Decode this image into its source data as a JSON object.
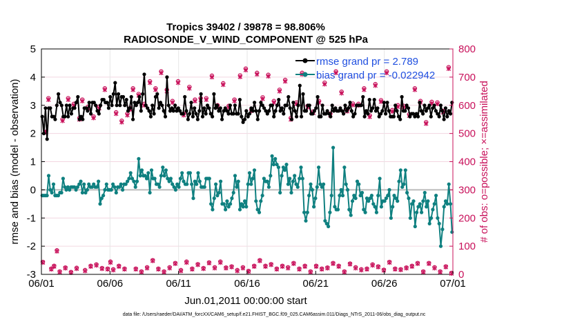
{
  "chart_data": {
    "type": "line",
    "title_line1": "Tropics 39402 / 39878 = 98.806%",
    "title_line2": "RADIOSONDE_V_WIND_COMPONENT @ 525 hPa",
    "xlabel": "Jun.01,2011 00:00:00 start",
    "ylabel": "rmse and bias (model - observation)",
    "ylabel_right": "# of obs: o=possible; ×=assimilated",
    "ylim": [
      -3,
      5
    ],
    "ylim_right": [
      0,
      800
    ],
    "xlim": [
      0,
      30
    ],
    "x_ticks": [
      0,
      5,
      10,
      15,
      20,
      25,
      30
    ],
    "x_tick_labels": [
      "06/01",
      "06/06",
      "06/11",
      "06/16",
      "06/21",
      "06/26",
      "07/01"
    ],
    "y_tick_labels": [
      "-3",
      "-2",
      "-1",
      "0",
      "1",
      "2",
      "3",
      "4",
      "5"
    ],
    "y_tick_labels_right": [
      "0",
      "100",
      "200",
      "300",
      "400",
      "500",
      "600",
      "700",
      "800"
    ],
    "footer": "data file: /Users/raeder/DAI/ATM_forcXX/CAM6_setup/f.e21.FHIST_BGC.f09_025.CAM6assim.011/Diags_NTrS_2011-06/obs_diag_output.nc",
    "colors": {
      "rmse": "#000000",
      "bias": "#0f8080",
      "obs": "#c8105a",
      "legend_text": "#1f4fe0",
      "zero": "#bbbbbb"
    },
    "series": [
      {
        "name": "rmse grand pr = 2.789",
        "axis": "left",
        "values": [
          2.6,
          2.0,
          2.9,
          1.8,
          2.9,
          2.9,
          2.6,
          2.6,
          2.5,
          3.0,
          3.4,
          3.1,
          3.0,
          2.6,
          2.6,
          3.0,
          2.6,
          3.0,
          2.7,
          2.9,
          2.9,
          3.1,
          3.3,
          2.5,
          2.6,
          2.5,
          2.9,
          2.9,
          2.8,
          3.1,
          2.7,
          3.1,
          3.1,
          3.0,
          2.8,
          2.7,
          3.0,
          3.2,
          3.2,
          3.1,
          3.1,
          2.9,
          3.3,
          3.0,
          3.4,
          3.8,
          3.0,
          3.4,
          3.0,
          3.3,
          3.3,
          3.0,
          3.2,
          2.8,
          2.9,
          3.3,
          2.5,
          3.1,
          3.0,
          3.1,
          3.3,
          2.8,
          3.4,
          4.1,
          3.0,
          2.9,
          2.8,
          2.6,
          3.0,
          2.7,
          3.3,
          3.4,
          2.9,
          3.1,
          3.0,
          2.8,
          2.6,
          4.0,
          3.0,
          2.8,
          2.9,
          2.8,
          3.0,
          2.8,
          2.9,
          2.8,
          2.7,
          2.7,
          3.3,
          2.8,
          2.5,
          2.7,
          3.1,
          2.6,
          2.9,
          2.7,
          2.5,
          2.8,
          3.4,
          2.6,
          2.9,
          2.7,
          3.0,
          2.9,
          2.7,
          2.6,
          3.4,
          2.9,
          3.0,
          2.8,
          2.9,
          2.5,
          2.8,
          2.9,
          2.8,
          2.7,
          3.0,
          2.7,
          2.7,
          3.0,
          2.7,
          2.7,
          3.2,
          2.6,
          2.4,
          2.5,
          2.8,
          2.6,
          2.7,
          2.9,
          2.8,
          3.1,
          2.8,
          2.5,
          2.8,
          3.1,
          3.0,
          2.9,
          2.8,
          2.7,
          2.8,
          3.0,
          3.0,
          2.6,
          2.8,
          3.0,
          3.2,
          2.8,
          2.9,
          2.7,
          3.0,
          3.0,
          3.3,
          2.9,
          2.5,
          3.1,
          2.8,
          2.6,
          3.0,
          3.7,
          2.6,
          3.4,
          2.8,
          2.8,
          3.0,
          3.0,
          2.7,
          2.7,
          2.8,
          2.9,
          3.3,
          2.6,
          2.6,
          3.0,
          2.7,
          2.7,
          2.8,
          2.7,
          2.6,
          3.0,
          2.8,
          2.9,
          2.8,
          2.8,
          2.9,
          2.8,
          2.7,
          3.0,
          2.8,
          2.9,
          3.1,
          2.8,
          2.6,
          2.7,
          3.0,
          3.0,
          3.0,
          3.0,
          3.3,
          2.6,
          2.8,
          2.7,
          3.2,
          2.8,
          2.9,
          3.2,
          2.8,
          2.9,
          2.6,
          2.7,
          2.8,
          3.1,
          2.7,
          3.1,
          2.8,
          2.6,
          2.6,
          2.6,
          3.0,
          2.8,
          2.6,
          2.5,
          3.3,
          2.8,
          2.8,
          3.0,
          2.9,
          2.6,
          2.7,
          2.7,
          2.6,
          2.7,
          2.6,
          3.1,
          2.8,
          2.7,
          3.0,
          2.8,
          2.9,
          3.0,
          2.6,
          2.9,
          3.0,
          2.8,
          2.7,
          2.6,
          3.0,
          2.8,
          2.5,
          2.9,
          2.6,
          2.8,
          2.7,
          3.1
        ]
      },
      {
        "name": "bias grand pr = -0.022942",
        "axis": "left",
        "values": [
          -0.2,
          -0.2,
          -0.2,
          -0.2,
          0.5,
          0.0,
          -0.1,
          0.2,
          -0.2,
          -0.2,
          -0.2,
          -0.1,
          -0.1,
          0.4,
          0.1,
          0.0,
          0.1,
          0.0,
          0.1,
          0.1,
          0.1,
          0.0,
          0.1,
          0.2,
          0.3,
          -0.1,
          0.2,
          -0.1,
          0.0,
          0.2,
          0.1,
          0.1,
          0.2,
          0.1,
          0.1,
          0.3,
          -0.5,
          -0.3,
          -0.2,
          0.0,
          0.2,
          0.0,
          0.0,
          0.0,
          0.2,
          0.1,
          -0.1,
          0.1,
          0.1,
          0.2,
          0.0,
          0.2,
          0.2,
          0.3,
          0.4,
          0.6,
          0.4,
          0.3,
          0.1,
          0.3,
          1.1,
          0.5,
          0.7,
          0.5,
          0.5,
          0.4,
          0.6,
          -0.1,
          0.7,
          0.4,
          0.4,
          0.2,
          0.2,
          0.1,
          0.5,
          0.8,
          0.5,
          0.7,
          0.4,
          0.3,
          0.4,
          0.2,
          0.1,
          0.0,
          0.2,
          0.1,
          0.4,
          0.6,
          0.3,
          0.2,
          0.2,
          0.6,
          0.6,
          0.2,
          -0.3,
          0.3,
          0.2,
          0.6,
          0.3,
          0.1,
          0.1,
          0.1,
          0.4,
          0.4,
          0.4,
          -0.5,
          -0.7,
          -0.3,
          0.2,
          -0.2,
          -0.1,
          0.3,
          -0.5,
          -0.5,
          -0.7,
          -0.4,
          -0.6,
          -0.5,
          -0.3,
          -0.1,
          0.5,
          0.1,
          0.3,
          -0.7,
          -0.5,
          -0.6,
          -0.4,
          -0.6,
          0.2,
          0.6,
          0.2,
          0.4,
          0.7,
          -0.4,
          -0.7,
          -0.8,
          -0.4,
          -0.2,
          0.4,
          0.3,
          0.3,
          0.1,
          0.5,
          1.2,
          0.9,
          1.1,
          0.9,
          0.8,
          -0.1,
          0.5,
          0.8,
          0.7,
          0.9,
          0.2,
          0.4,
          -0.1,
          0.3,
          0.5,
          0.2,
          0.1,
          0.4,
          0.8,
          0.4,
          -0.8,
          -1.1,
          -0.8,
          -0.2,
          0.2,
          0.0,
          -0.6,
          -0.3,
          0.1,
          0.8,
          0.2,
          0.1,
          0.2,
          -1.1,
          -1.2,
          -1.3,
          -0.8,
          -0.2,
          1.5,
          -0.6,
          -0.7,
          -0.7,
          -0.2,
          0.0,
          -0.2,
          0.8,
          0.2,
          0.0,
          -0.7,
          -0.9,
          -0.4,
          -0.2,
          -0.3,
          0.3,
          0.2,
          -0.2,
          -0.1,
          -0.7,
          -0.8,
          -0.3,
          -0.4,
          -0.3,
          -0.2,
          -0.5,
          -0.6,
          -0.8,
          -0.2,
          0.4,
          -0.6,
          -0.4,
          -0.4,
          -0.3,
          -0.2,
          0.0,
          -1.0,
          -0.6,
          -0.2,
          -0.3,
          -0.4,
          0.3,
          0.7,
          0.1,
          0.2,
          0.7,
          -0.1,
          -0.3,
          -1.0,
          -0.5,
          -0.4,
          -1.3,
          -0.8,
          -0.6,
          -0.5,
          -0.8,
          -0.4,
          -0.1,
          -0.6,
          -0.4,
          -1.2,
          -1.0,
          -0.7,
          -0.5,
          -0.2,
          -1.0,
          -1.2,
          -2.0,
          -1.4,
          -0.6,
          -0.4,
          -0.5,
          0.2,
          -0.5,
          -1.5
        ]
      },
      {
        "name": "obs possible",
        "axis": "right",
        "marker": "o",
        "values": [
          44,
          505,
          625,
          20,
          30,
          85,
          10,
          550,
          24,
          625,
          8,
          605,
          23,
          555,
          620,
          15,
          595,
          30,
          560,
          35,
          595,
          22,
          660,
          20,
          45,
          18,
          575,
          30,
          545,
          20,
          570,
          590,
          660,
          20,
          640,
          10,
          605,
          25,
          685,
          50,
          660,
          20,
          720,
          10,
          655,
          25,
          615,
          40,
          685,
          15,
          570,
          45,
          665,
          20,
          620,
          36,
          625,
          22,
          625,
          42,
          705,
          25,
          600,
          45,
          678,
          24,
          598,
          28,
          620,
          15,
          706,
          25,
          730,
          12,
          585,
          30,
          715,
          50,
          628,
          30,
          708,
          36,
          615,
          20,
          655,
          30,
          690,
          25,
          555,
          40,
          610,
          20,
          715,
          30,
          598,
          10,
          578,
          30,
          615,
          20,
          680,
          24,
          570,
          40,
          720,
          30,
          648,
          10,
          584,
          38,
          606,
          25,
          605,
          18,
          660,
          20,
          564,
          35,
          675,
          28,
          618,
          16,
          720,
          44,
          583,
          20,
          600,
          18,
          598,
          24,
          568,
          30,
          660,
          40,
          615,
          10,
          540,
          40,
          612,
          25,
          610,
          10,
          580,
          28,
          735,
          5
        ]
      },
      {
        "name": "obs assimilated",
        "axis": "right",
        "marker": "x",
        "values": [
          42,
          505,
          620,
          18,
          28,
          82,
          8,
          545,
          22,
          620,
          6,
          600,
          20,
          550,
          615,
          12,
          590,
          28,
          555,
          32,
          590,
          20,
          655,
          18,
          42,
          15,
          570,
          28,
          540,
          18,
          565,
          585,
          655,
          18,
          635,
          8,
          600,
          22,
          680,
          48,
          655,
          18,
          715,
          8,
          650,
          22,
          610,
          38,
          680,
          12,
          565,
          42,
          660,
          18,
          615,
          34,
          620,
          20,
          620,
          40,
          700,
          22,
          595,
          42,
          673,
          22,
          593,
          26,
          615,
          12,
          701,
          22,
          725,
          10,
          580,
          28,
          710,
          48,
          623,
          28,
          703,
          34,
          610,
          18,
          650,
          28,
          685,
          22,
          550,
          38,
          605,
          18,
          710,
          28,
          593,
          8,
          573,
          28,
          610,
          18,
          675,
          22,
          565,
          38,
          715,
          28,
          643,
          8,
          579,
          36,
          601,
          22,
          600,
          15,
          655,
          18,
          559,
          32,
          670,
          26,
          613,
          14,
          715,
          42,
          578,
          18,
          595,
          16,
          593,
          22,
          563,
          28,
          655,
          38,
          610,
          8,
          535,
          38,
          607,
          22,
          605,
          8,
          575,
          26,
          730,
          3
        ]
      }
    ],
    "legend": {
      "location": "top-right"
    }
  }
}
